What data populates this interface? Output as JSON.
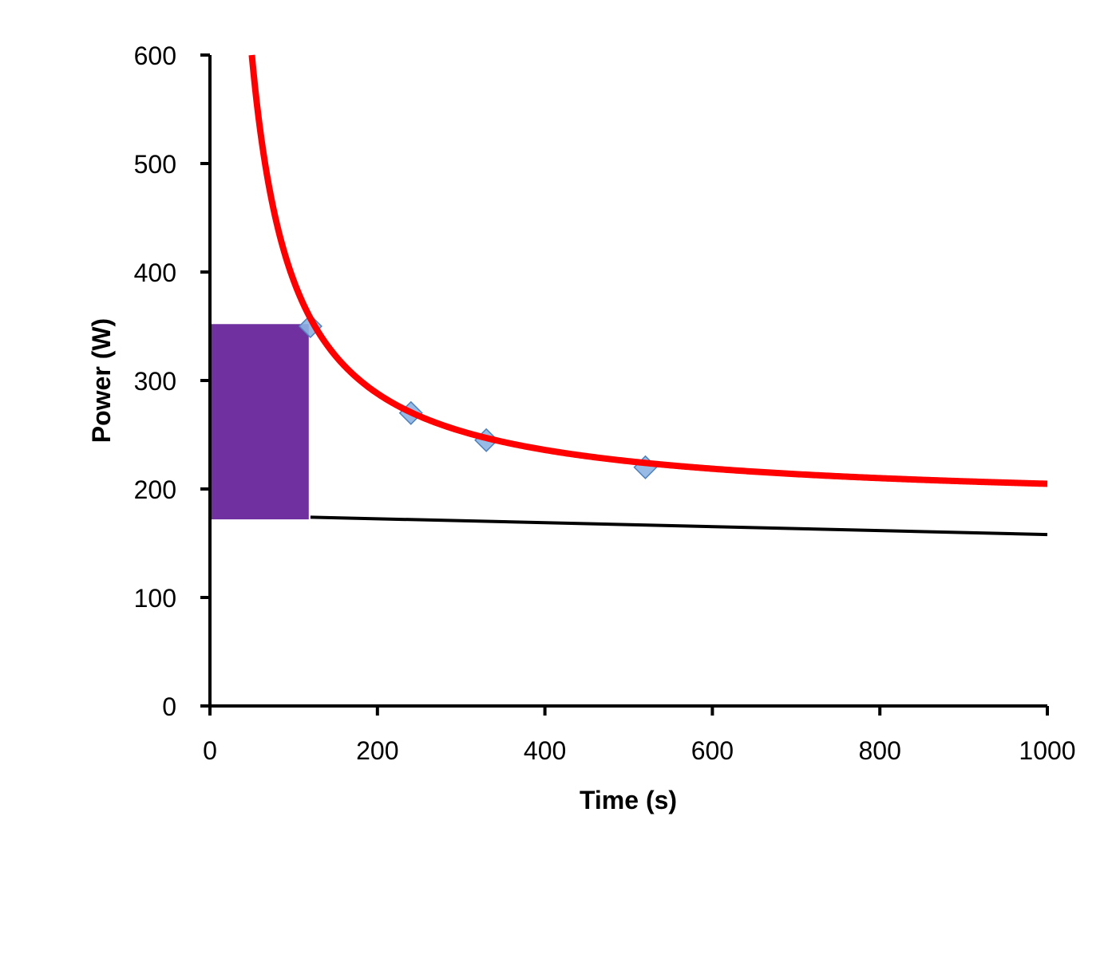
{
  "chart_data": {
    "type": "scatter",
    "title": "",
    "xlabel": "Time (s)",
    "ylabel": "Power (W)",
    "xlim": [
      0,
      1000
    ],
    "ylim": [
      0,
      600
    ],
    "xticks": [
      0,
      200,
      400,
      600,
      800,
      1000
    ],
    "yticks": [
      0,
      100,
      200,
      300,
      400,
      500,
      600
    ],
    "grid": false,
    "legend": "none",
    "points": {
      "x": [
        120,
        240,
        330,
        520
      ],
      "y": [
        350,
        270,
        245,
        220
      ],
      "marker": "diamond",
      "color": "#8db4e2",
      "stroke": "#4f81bd"
    },
    "fit_curve": {
      "cp": 184,
      "w_prime": 20800,
      "x_start": 50,
      "x_end": 1000,
      "color": "#ff0000"
    },
    "baseline_line": {
      "x": [
        120,
        1000
      ],
      "y": [
        174,
        158
      ],
      "color": "#000000"
    },
    "shaded_region": {
      "x": [
        0,
        118
      ],
      "y": [
        172,
        352
      ],
      "color": "#7030a0"
    }
  }
}
